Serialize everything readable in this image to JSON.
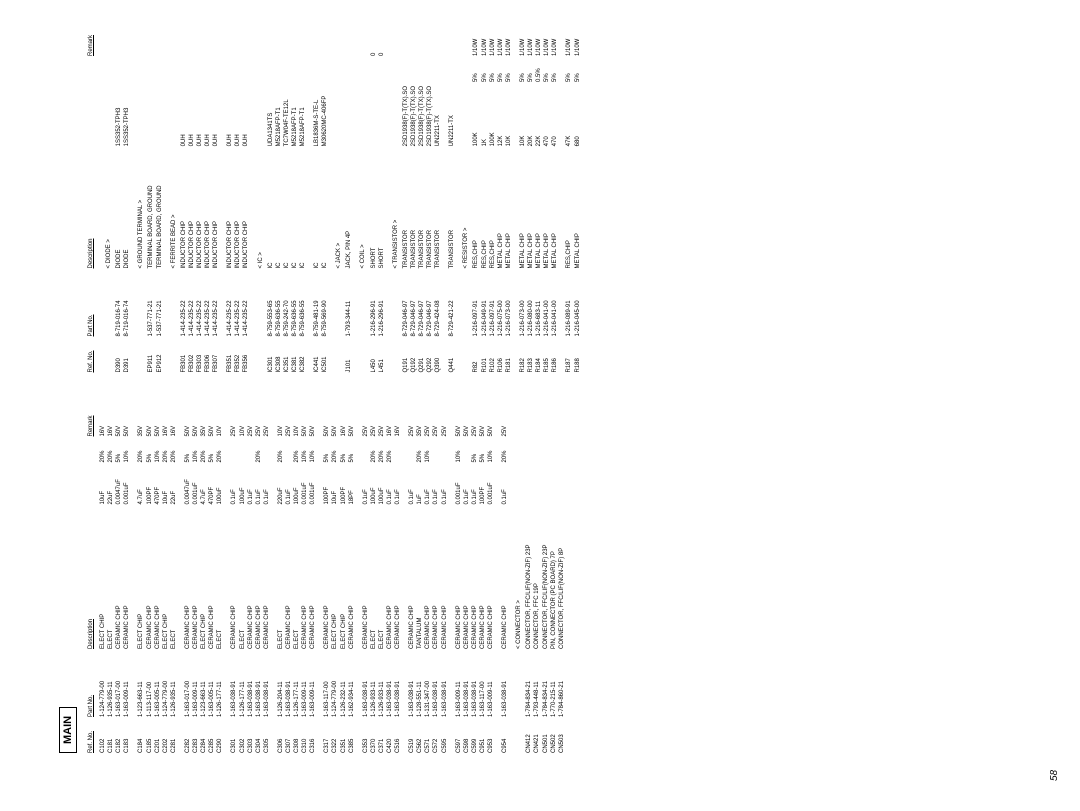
{
  "title": "MAIN",
  "page_number": "58",
  "headers": [
    "Ref. No.",
    "Part No.",
    "Description",
    "",
    "",
    "Remark"
  ],
  "left_rows": [
    [
      "C102",
      "1-124-779-00",
      "ELECT CHIP",
      "10uF",
      "20%",
      "16V"
    ],
    [
      "C181",
      "1-126-935-11",
      "ELECT",
      "22uF",
      "20%",
      "16V"
    ],
    [
      "C182",
      "1-163-017-00",
      "CERAMIC CHIP",
      "0.0047uF",
      "5%",
      "50V"
    ],
    [
      "C183",
      "1-163-009-11",
      "CERAMIC CHIP",
      "0.001uF",
      "10%",
      "50V"
    ],
    [
      "GAP"
    ],
    [
      "C184",
      "1-123-663-11",
      "ELECT CHIP",
      "4.7uF",
      "20%",
      "35V"
    ],
    [
      "C185",
      "1-113-117-00",
      "CERAMIC CHIP",
      "100PF",
      "5%",
      "50V"
    ],
    [
      "C201",
      "1-163-005-11",
      "CERAMIC CHIP",
      "470PF",
      "10%",
      "50V"
    ],
    [
      "C202",
      "1-124-779-00",
      "ELECT CHIP",
      "10uF",
      "20%",
      "16V"
    ],
    [
      "C281",
      "1-126-935-11",
      "ELECT",
      "22uF",
      "20%",
      "16V"
    ],
    [
      "GAP"
    ],
    [
      "C282",
      "1-163-017-00",
      "CERAMIC CHIP",
      "0.0047uF",
      "5%",
      "50V"
    ],
    [
      "C283",
      "1-163-009-11",
      "CERAMIC CHIP",
      "0.001uF",
      "10%",
      "50V"
    ],
    [
      "C284",
      "1-123-663-11",
      "ELECT CHIP",
      "4.7uF",
      "20%",
      "35V"
    ],
    [
      "C285",
      "1-163-005-11",
      "CERAMIC CHIP",
      "470PF",
      "5%",
      "50V"
    ],
    [
      "C290",
      "1-126-177-11",
      "ELECT",
      "100uF",
      "20%",
      "10V"
    ],
    [
      "GAP"
    ],
    [
      "C301",
      "1-163-038-91",
      "CERAMIC CHIP",
      "0.1uF",
      "",
      "25V"
    ],
    [
      "C302",
      "1-126-177-11",
      "ELECT",
      "100uF",
      "",
      "10V"
    ],
    [
      "C303",
      "1-163-038-91",
      "CERAMIC CHIP",
      "0.1uF",
      "",
      "25V"
    ],
    [
      "C304",
      "1-163-038-91",
      "CERAMIC CHIP",
      "0.1uF",
      "20%",
      "25V"
    ],
    [
      "C305",
      "1-163-038-91",
      "CERAMIC CHIP",
      "0.1uF",
      "",
      "25V"
    ],
    [
      "GAP"
    ],
    [
      "C306",
      "1-126-204-11",
      "ELECT",
      "220uF",
      "20%",
      "10V"
    ],
    [
      "C307",
      "1-163-038-91",
      "CERAMIC CHIP",
      "0.1uF",
      "",
      "25V"
    ],
    [
      "C308",
      "1-126-177-11",
      "ELECT",
      "100uF",
      "20%",
      "10V"
    ],
    [
      "C310",
      "1-163-009-11",
      "CERAMIC CHIP",
      "0.001uF",
      "10%",
      "50V"
    ],
    [
      "C316",
      "1-163-009-11",
      "CERAMIC CHIP",
      "0.001uF",
      "10%",
      "50V"
    ],
    [
      "GAP"
    ],
    [
      "C317",
      "1-163-117-00",
      "CERAMIC CHIP",
      "100PF",
      "5%",
      "50V"
    ],
    [
      "C322",
      "1-124-779-00",
      "ELECT CHIP",
      "10uF",
      "20%",
      "50V"
    ],
    [
      "C351",
      "1-126-232-11",
      "ELECT CHIP",
      "100PF",
      "5%",
      "16V"
    ],
    [
      "C385",
      "1-162-934-11",
      "CERAMIC CHIP",
      "18PF",
      "5%",
      "50V"
    ],
    [
      "GAP"
    ],
    [
      "C353",
      "1-163-038-91",
      "CERAMIC CHIP",
      "0.1uF",
      "",
      "25V"
    ],
    [
      "C370",
      "1-126-933-11",
      "ELECT",
      "100uF",
      "20%",
      "25V"
    ],
    [
      "C371",
      "1-126-933-11",
      "ELECT",
      "100uF",
      "20%",
      "25V"
    ],
    [
      "C420",
      "1-163-038-91",
      "CERAMIC CHIP",
      "0.1uF",
      "20%",
      "16V"
    ],
    [
      "C516",
      "1-163-038-91",
      "CERAMIC CHIP",
      "0.1uF",
      "",
      "16V"
    ],
    [
      "GAP"
    ],
    [
      "C519",
      "1-163-038-91",
      "CERAMIC CHIP",
      "0.1uF",
      "",
      "25V"
    ],
    [
      "C562",
      "1-128-551-11",
      "TANTALUM",
      "1uF",
      "20%",
      "35V"
    ],
    [
      "C571",
      "1-131-347-00",
      "CERAMIC CHIP",
      "0.1uF",
      "10%",
      "25V"
    ],
    [
      "C572",
      "1-163-038-91",
      "CERAMIC CHIP",
      "0.1uF",
      "",
      "25V"
    ],
    [
      "C595",
      "1-163-038-91",
      "CERAMIC CHIP",
      "0.1uF",
      "",
      "25V"
    ],
    [
      "GAP"
    ],
    [
      "C597",
      "1-163-009-11",
      "CERAMIC CHIP",
      "0.001uF",
      "10%",
      "50V"
    ],
    [
      "C598",
      "1-163-038-91",
      "CERAMIC CHIP",
      "0.1uF",
      "",
      "50V"
    ],
    [
      "C599",
      "1-163-038-91",
      "CERAMIC CHIP",
      "0.1uF",
      "5%",
      "25V"
    ],
    [
      "C951",
      "1-163-117-00",
      "CERAMIC CHIP",
      "100PF",
      "5%",
      "50V"
    ],
    [
      "C953",
      "1-163-009-11",
      "CERAMIC CHIP",
      "0.001uF",
      "10%",
      "50V"
    ],
    [
      "GAP"
    ],
    [
      "C954",
      "1-163-038-91",
      "CERAMIC CHIP",
      "0.1uF",
      "20%",
      "25V"
    ],
    [
      "SECTION",
      "< CONNECTOR >"
    ],
    [
      "CN412",
      "1-784-834-21",
      "CONNECTOR, FFC/LIF(NON-ZIF) 23P",
      "",
      "",
      ""
    ],
    [
      "CN421",
      "1-793-448-11",
      "CONNECTOR, FFC 19P",
      "",
      "",
      ""
    ],
    [
      "CN501",
      "1-784-834-21",
      "CONNECTOR, FFC/LIF(NON-ZIF) 23P",
      "",
      "",
      ""
    ],
    [
      "CN502",
      "1-770-215-11",
      "PIN, CONNECTOR (PC BOARD) 7P",
      "",
      "",
      ""
    ],
    [
      "CN503",
      "1-784-860-21",
      "CONNECTOR, FFC/LIF(NON-ZIF) 8P",
      "",
      "",
      ""
    ]
  ],
  "right_rows": [
    [
      "SECTION",
      "< DIODE >"
    ],
    [
      "D390",
      "8-719-016-74",
      "DIODE",
      "1SS352-TPH3",
      "",
      ""
    ],
    [
      "D391",
      "8-719-016-74",
      "DIODE",
      "1SS352-TPH3",
      "",
      ""
    ],
    [
      "SECTION",
      "< GROUND TERMINAL >"
    ],
    [
      "EP911",
      "1-537-771-21",
      "TERMINAL BOARD, GROUND",
      "",
      "",
      ""
    ],
    [
      "EP912",
      "1-537-771-21",
      "TERMINAL BOARD, GROUND",
      "",
      "",
      ""
    ],
    [
      "SECTION",
      "< FERRITE BEAD >"
    ],
    [
      "FB301",
      "1-414-235-22",
      "INDUCTOR CHIP",
      "0UH",
      "",
      ""
    ],
    [
      "FB302",
      "1-414-235-22",
      "INDUCTOR CHIP",
      "0UH",
      "",
      ""
    ],
    [
      "FB303",
      "1-414-235-22",
      "INDUCTOR CHIP",
      "0UH",
      "",
      ""
    ],
    [
      "FB306",
      "1-414-235-22",
      "INDUCTOR CHIP",
      "0UH",
      "",
      ""
    ],
    [
      "FB307",
      "1-414-235-22",
      "INDUCTOR CHIP",
      "0UH",
      "",
      ""
    ],
    [
      "GAP"
    ],
    [
      "FB351",
      "1-414-235-22",
      "INDUCTOR CHIP",
      "0UH",
      "",
      ""
    ],
    [
      "FB352",
      "1-414-235-22",
      "INDUCTOR CHIP",
      "0UH",
      "",
      ""
    ],
    [
      "FB356",
      "1-414-235-22",
      "INDUCTOR CHIP",
      "0UH",
      "",
      ""
    ],
    [
      "SECTION",
      "< IC >"
    ],
    [
      "IC301",
      "8-759-553-65",
      "IC",
      "UDA1341TS",
      "",
      ""
    ],
    [
      "IC308",
      "8-759-636-55",
      "IC",
      "M5218AFP-T1",
      "",
      ""
    ],
    [
      "IC351",
      "8-759-242-70",
      "IC",
      "TC7W04F-TE12L",
      "",
      ""
    ],
    [
      "IC381",
      "8-759-636-55",
      "IC",
      "M5218AFP-T1",
      "",
      ""
    ],
    [
      "IC382",
      "8-759-636-55",
      "IC",
      "M5218AFP-T1",
      "",
      ""
    ],
    [
      "GAP"
    ],
    [
      "IC441",
      "8-759-481-19",
      "IC",
      "LB1836M-S-TE-L",
      "",
      ""
    ],
    [
      "IC501",
      "8-759-569-90",
      "IC",
      "M30620MC-406FP",
      "",
      ""
    ],
    [
      "SECTION",
      "< JACK >"
    ],
    [
      "J101",
      "1-793-344-11",
      "JACK, PIN 4P",
      "",
      "",
      ""
    ],
    [
      "SECTION",
      "< COIL >"
    ],
    [
      "L450",
      "1-216-296-91",
      "SHORT",
      "",
      "",
      "0"
    ],
    [
      "L451",
      "1-216-296-91",
      "SHORT",
      "",
      "",
      "0"
    ],
    [
      "SECTION",
      "< TRANSISTOR >"
    ],
    [
      "Q191",
      "8-729-046-97",
      "TRANSISTOR",
      "2SD1938(F)-T(TX).SO",
      "",
      ""
    ],
    [
      "Q192",
      "8-729-046-97",
      "TRANSISTOR",
      "2SD1938(F)-T(TX).SO",
      "",
      ""
    ],
    [
      "Q291",
      "8-729-046-97",
      "TRANSISTOR",
      "2SD1938(F)-T(TX).SO",
      "",
      ""
    ],
    [
      "Q292",
      "8-729-046-97",
      "TRANSISTOR",
      "2SD1938(F)-T(TX).SO",
      "",
      ""
    ],
    [
      "Q390",
      "8-729-424-08",
      "TRANSISTOR",
      "UN2211-TX",
      "",
      ""
    ],
    [
      "GAP"
    ],
    [
      "Q441",
      "8-729-421-22",
      "TRANSISTOR",
      "UN2211-TX",
      "",
      ""
    ],
    [
      "SECTION",
      "< RESISTOR >"
    ],
    [
      "R82",
      "1-216-097-91",
      "RES,CHIP",
      "100K",
      "5%",
      "1/10W"
    ],
    [
      "R101",
      "1-216-049-91",
      "RES,CHIP",
      "1K",
      "5%",
      "1/10W"
    ],
    [
      "R102",
      "1-216-097-91",
      "RES,CHIP",
      "100K",
      "5%",
      "1/10W"
    ],
    [
      "R106",
      "1-216-075-00",
      "METAL CHIP",
      "12K",
      "5%",
      "1/10W"
    ],
    [
      "R181",
      "1-216-073-00",
      "METAL CHIP",
      "10K",
      "5%",
      "1/10W"
    ],
    [
      "GAP"
    ],
    [
      "R182",
      "1-216-073-00",
      "METAL CHIP",
      "10K",
      "5%",
      "1/10W"
    ],
    [
      "R183",
      "1-216-080-00",
      "METAL CHIP",
      "20K",
      "5%",
      "1/10W"
    ],
    [
      "R184",
      "1-216-683-11",
      "METAL CHIP",
      "22K",
      "0.5%",
      "1/10W"
    ],
    [
      "R185",
      "1-216-041-00",
      "METAL CHIP",
      "470",
      "5%",
      "1/10W"
    ],
    [
      "R186",
      "1-216-041-00",
      "METAL CHIP",
      "470",
      "5%",
      "1/10W"
    ],
    [
      "GAP"
    ],
    [
      "R187",
      "1-216-089-91",
      "RES,CHIP",
      "47K",
      "5%",
      "1/10W"
    ],
    [
      "R188",
      "1-216-045-00",
      "METAL CHIP",
      "680",
      "5%",
      "1/10W"
    ]
  ]
}
